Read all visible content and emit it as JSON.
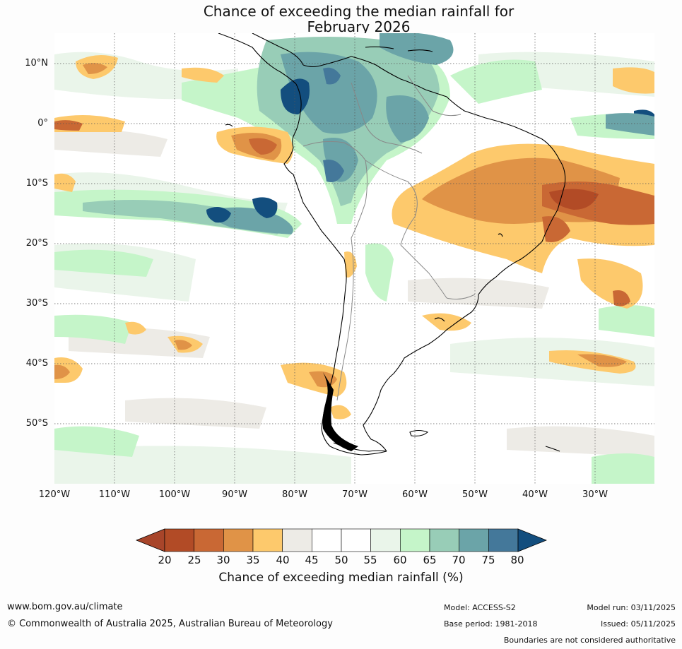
{
  "title": {
    "line1": "Chance of exceeding the median rainfall for",
    "line2": "February 2026"
  },
  "map": {
    "lat_labels": [
      "10°N",
      "0°",
      "10°S",
      "20°S",
      "30°S",
      "40°S",
      "50°S"
    ],
    "lon_labels": [
      "120°W",
      "110°W",
      "100°W",
      "90°W",
      "80°W",
      "70°W",
      "60°W",
      "50°W",
      "40°W",
      "30°W"
    ],
    "extent": {
      "lon": [
        -120,
        -20
      ],
      "lat": [
        -60,
        15
      ]
    }
  },
  "colorbar": {
    "ticks": [
      "20",
      "25",
      "30",
      "35",
      "40",
      "45",
      "50",
      "55",
      "60",
      "65",
      "70",
      "75",
      "80"
    ],
    "colors": [
      "#a8452a",
      "#b24b26",
      "#c96834",
      "#e09347",
      "#fdc96c",
      "#edebe6",
      "#ffffff",
      "#ffffff",
      "#eaf5ea",
      "#c5f5c9",
      "#98cdb7",
      "#6ba4a8",
      "#44789a",
      "#134e7e"
    ],
    "title": "Chance of exceeding median rainfall (%)"
  },
  "footer": {
    "website": "www.bom.gov.au/climate",
    "copyright": "© Commonwealth of Australia 2025, Australian Bureau of Meteorology",
    "model": "Model: ACCESS-S2",
    "base_period": "Base period: 1981-2018",
    "model_run": "Model run: 03/11/2025",
    "issued": "Issued: 05/11/2025",
    "boundaries": "Boundaries are not considered authoritative"
  }
}
